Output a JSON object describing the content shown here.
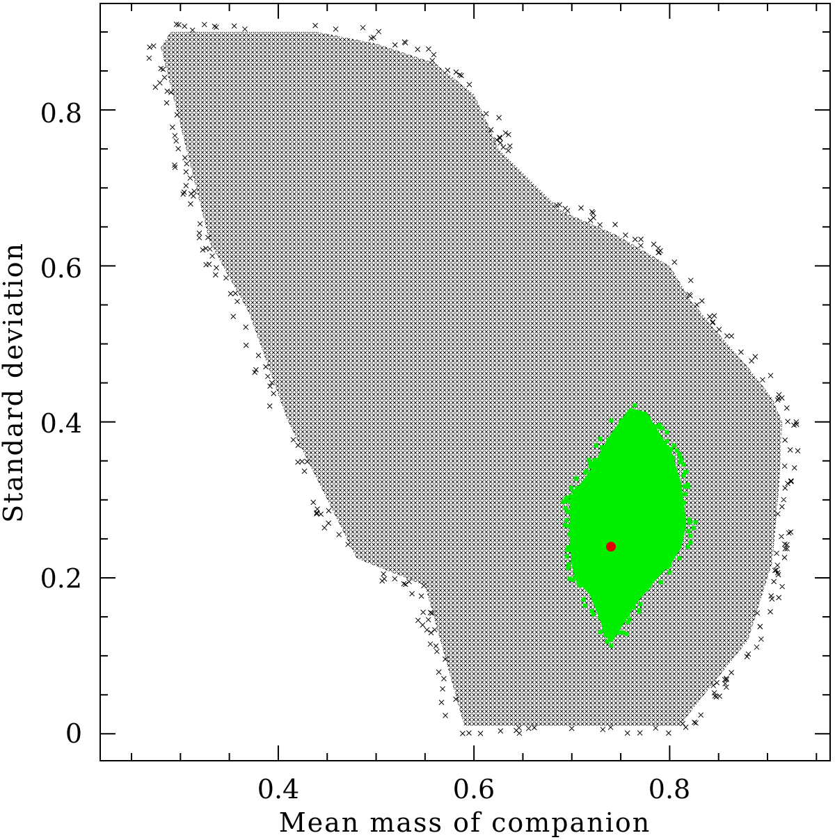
{
  "chart_data": {
    "type": "scatter",
    "title": "",
    "xlabel": "Mean mass of companion",
    "ylabel": "Standard deviation",
    "xlim": [
      0.218,
      0.964
    ],
    "ylim": [
      -0.0345,
      0.9365
    ],
    "grid": false,
    "x_ticks_major": [
      0.4,
      0.6,
      0.8
    ],
    "x_tick_labels": [
      "0.4",
      "0.6",
      "0.8"
    ],
    "x_ticks_minor_step": 0.05,
    "y_ticks_major": [
      0,
      0.2,
      0.4,
      0.6,
      0.8
    ],
    "y_tick_labels": [
      "0",
      "0.2",
      "0.4",
      "0.6",
      "0.8"
    ],
    "y_ticks_minor_step": 0.05,
    "series": [
      {
        "marker": "x",
        "color": "#000000",
        "region_x": [
          0.29,
          0.44,
          0.5,
          0.56,
          0.6,
          0.615,
          0.625,
          0.69,
          0.69,
          0.745,
          0.8,
          0.822,
          0.852,
          0.88,
          0.905,
          0.915,
          0.912,
          0.905,
          0.88,
          0.835,
          0.81,
          0.77,
          0.7,
          0.59,
          0.55,
          0.48,
          0.41,
          0.37,
          0.33,
          0.28
        ],
        "region_y": [
          0.9,
          0.9,
          0.885,
          0.86,
          0.82,
          0.78,
          0.75,
          0.67,
          0.67,
          0.64,
          0.6,
          0.555,
          0.51,
          0.47,
          0.43,
          0.4,
          0.32,
          0.22,
          0.12,
          0.05,
          0.01,
          0.01,
          0.01,
          0.01,
          0.19,
          0.225,
          0.4,
          0.54,
          0.63,
          0.88
        ]
      },
      {
        "marker": "filled-square",
        "color": "#00ee00",
        "region_x": [
          0.76,
          0.775,
          0.785,
          0.8,
          0.81,
          0.815,
          0.81,
          0.8,
          0.785,
          0.765,
          0.75,
          0.74,
          0.735,
          0.73,
          0.72,
          0.705,
          0.7,
          0.7,
          0.705,
          0.72,
          0.74
        ],
        "region_y": [
          0.415,
          0.41,
          0.39,
          0.36,
          0.32,
          0.27,
          0.24,
          0.22,
          0.2,
          0.17,
          0.14,
          0.12,
          0.13,
          0.15,
          0.18,
          0.2,
          0.24,
          0.3,
          0.31,
          0.335,
          0.38
        ]
      },
      {
        "marker": "filled-circle",
        "color": "#e00000",
        "points": [
          [
            0.74,
            0.24
          ]
        ]
      }
    ]
  }
}
